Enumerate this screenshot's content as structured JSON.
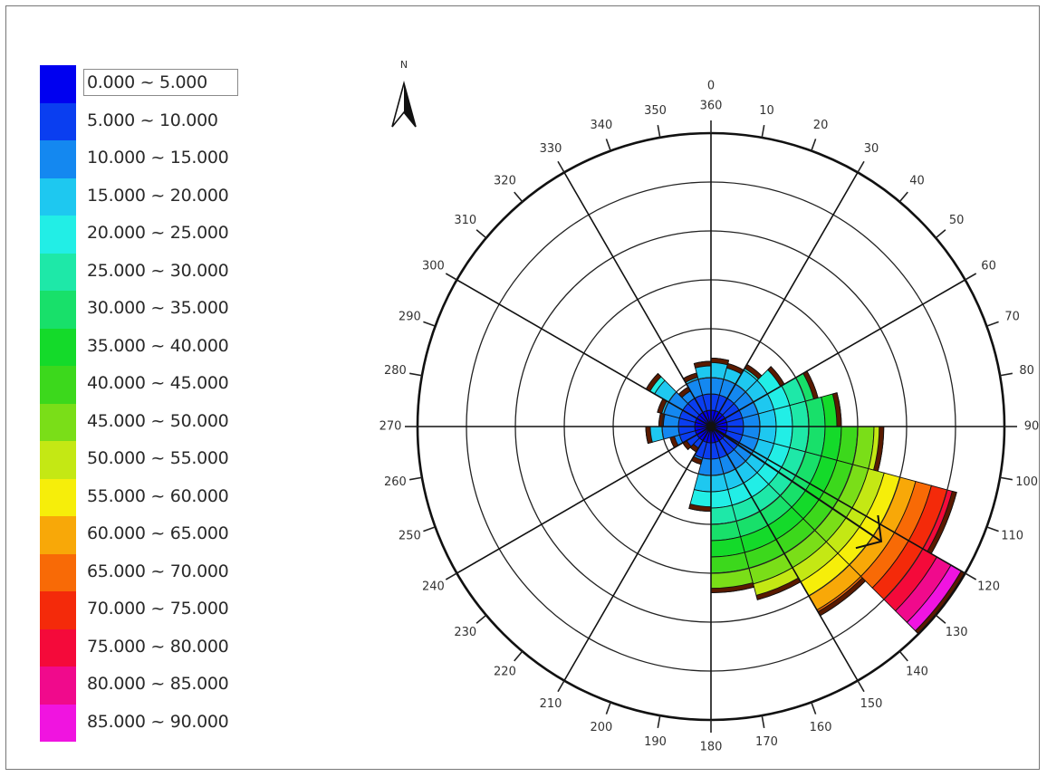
{
  "legend": {
    "items": [
      {
        "label": "0.000 ~ 5.000",
        "color": "#0000f0"
      },
      {
        "label": "5.000 ~ 10.000",
        "color": "#0a3ef0"
      },
      {
        "label": "10.000 ~ 15.000",
        "color": "#1488f0"
      },
      {
        "label": "15.000 ~ 20.000",
        "color": "#1ec8f0"
      },
      {
        "label": "20.000 ~ 25.000",
        "color": "#22eee6"
      },
      {
        "label": "25.000 ~ 30.000",
        "color": "#1ee8a8"
      },
      {
        "label": "30.000 ~ 35.000",
        "color": "#18e06a"
      },
      {
        "label": "35.000 ~ 40.000",
        "color": "#14da2a"
      },
      {
        "label": "40.000 ~ 45.000",
        "color": "#3cd81c"
      },
      {
        "label": "45.000 ~ 50.000",
        "color": "#7ade18"
      },
      {
        "label": "50.000 ~ 55.000",
        "color": "#c4e814"
      },
      {
        "label": "55.000 ~ 60.000",
        "color": "#f6ee0a"
      },
      {
        "label": "60.000 ~ 65.000",
        "color": "#f8a808"
      },
      {
        "label": "65.000 ~ 70.000",
        "color": "#f86a06"
      },
      {
        "label": "70.000 ~ 75.000",
        "color": "#f42a0a"
      },
      {
        "label": "75.000 ~ 80.000",
        "color": "#f40a3a"
      },
      {
        "label": "80.000 ~ 85.000",
        "color": "#f00a8c"
      },
      {
        "label": "85.000 ~ 90.000",
        "color": "#f014e0"
      }
    ],
    "selected_index": 0
  },
  "compass": {
    "label": "N"
  },
  "chart_data": {
    "type": "polar-rose",
    "angle_ticks": [
      {
        "angle": 0,
        "label": "0"
      },
      {
        "angle": 0,
        "label": "360"
      },
      {
        "angle": 10,
        "label": "10"
      },
      {
        "angle": 20,
        "label": "20"
      },
      {
        "angle": 30,
        "label": "30"
      },
      {
        "angle": 40,
        "label": "40"
      },
      {
        "angle": 50,
        "label": "50"
      },
      {
        "angle": 60,
        "label": "60"
      },
      {
        "angle": 70,
        "label": "70"
      },
      {
        "angle": 80,
        "label": "80"
      },
      {
        "angle": 90,
        "label": "90"
      },
      {
        "angle": 100,
        "label": "100"
      },
      {
        "angle": 110,
        "label": "110"
      },
      {
        "angle": 120,
        "label": "120"
      },
      {
        "angle": 130,
        "label": "130"
      },
      {
        "angle": 140,
        "label": "140"
      },
      {
        "angle": 150,
        "label": "150"
      },
      {
        "angle": 160,
        "label": "160"
      },
      {
        "angle": 170,
        "label": "170"
      },
      {
        "angle": 180,
        "label": "180"
      },
      {
        "angle": 190,
        "label": "190"
      },
      {
        "angle": 200,
        "label": "200"
      },
      {
        "angle": 210,
        "label": "210"
      },
      {
        "angle": 220,
        "label": "220"
      },
      {
        "angle": 230,
        "label": "230"
      },
      {
        "angle": 240,
        "label": "240"
      },
      {
        "angle": 250,
        "label": "250"
      },
      {
        "angle": 260,
        "label": "260"
      },
      {
        "angle": 270,
        "label": "270"
      },
      {
        "angle": 280,
        "label": "280"
      },
      {
        "angle": 290,
        "label": "290"
      },
      {
        "angle": 300,
        "label": "300"
      },
      {
        "angle": 310,
        "label": "310"
      },
      {
        "angle": 320,
        "label": "320"
      },
      {
        "angle": 330,
        "label": "330"
      },
      {
        "angle": 340,
        "label": "340"
      },
      {
        "angle": 350,
        "label": "350"
      }
    ],
    "radial_max": 90,
    "ring_step": 15,
    "spoke_step": 30,
    "sectors": [
      {
        "start": 0,
        "end": 15,
        "value": 21
      },
      {
        "start": 15,
        "end": 30,
        "value": 20
      },
      {
        "start": 30,
        "end": 45,
        "value": 22
      },
      {
        "start": 45,
        "end": 60,
        "value": 26
      },
      {
        "start": 60,
        "end": 75,
        "value": 34
      },
      {
        "start": 75,
        "end": 90,
        "value": 40
      },
      {
        "start": 90,
        "end": 105,
        "value": 53
      },
      {
        "start": 105,
        "end": 120,
        "value": 78
      },
      {
        "start": 120,
        "end": 135,
        "value": 90
      },
      {
        "start": 135,
        "end": 150,
        "value": 67
      },
      {
        "start": 150,
        "end": 165,
        "value": 55
      },
      {
        "start": 165,
        "end": 180,
        "value": 51
      },
      {
        "start": 180,
        "end": 195,
        "value": 26
      },
      {
        "start": 195,
        "end": 210,
        "value": 12
      },
      {
        "start": 210,
        "end": 225,
        "value": 9
      },
      {
        "start": 225,
        "end": 240,
        "value": 10
      },
      {
        "start": 240,
        "end": 255,
        "value": 13
      },
      {
        "start": 255,
        "end": 270,
        "value": 20
      },
      {
        "start": 270,
        "end": 285,
        "value": 16
      },
      {
        "start": 285,
        "end": 300,
        "value": 17
      },
      {
        "start": 300,
        "end": 315,
        "value": 23
      },
      {
        "start": 315,
        "end": 330,
        "value": 14
      },
      {
        "start": 330,
        "end": 345,
        "value": 17
      },
      {
        "start": 345,
        "end": 360,
        "value": 20
      }
    ],
    "arrow": {
      "direction": 124,
      "value": 63
    }
  }
}
